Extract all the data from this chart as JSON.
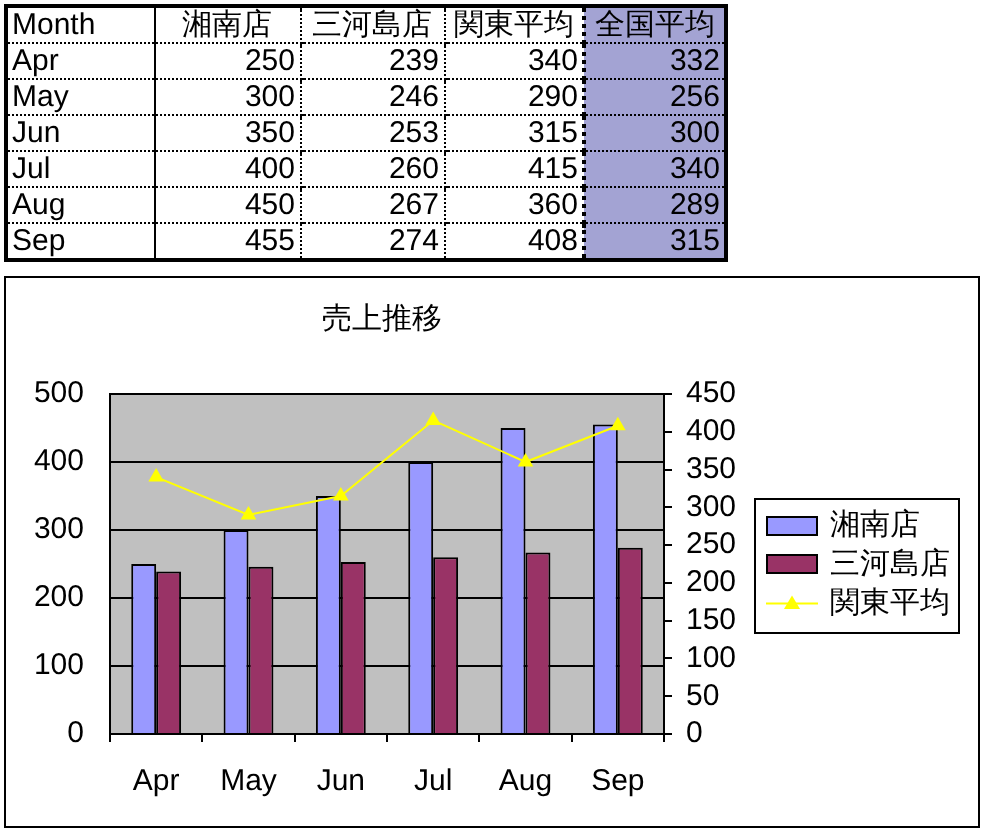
{
  "chart_data": [
    {
      "type": "heatmap",
      "ylabel": "Month",
      "categories": [
        "湘南店",
        "三河島店",
        "関東平均",
        "全国平均"
      ],
      "y_categories": [
        "Apr",
        "May",
        "Jun",
        "Jul",
        "Aug",
        "Sep"
      ],
      "cells": [
        [
          250,
          239,
          340,
          332
        ],
        [
          300,
          246,
          290,
          256
        ],
        [
          350,
          253,
          315,
          300
        ],
        [
          400,
          260,
          415,
          340
        ],
        [
          450,
          267,
          360,
          289
        ],
        [
          455,
          274,
          408,
          315
        ]
      ],
      "data_labels": true,
      "bands": [
        {
          "axis": "x",
          "from": "全国平均",
          "to": "全国平均",
          "color": "#a3a3d3"
        }
      ]
    },
    {
      "type": "bar",
      "title": "売上推移",
      "categories": [
        "Apr",
        "May",
        "Jun",
        "Jul",
        "Aug",
        "Sep"
      ],
      "series": [
        {
          "name": "湘南店",
          "color": "#9999ff",
          "values": [
            250,
            300,
            350,
            400,
            450,
            455
          ]
        },
        {
          "name": "三河島店",
          "color": "#993366",
          "values": [
            239,
            246,
            253,
            260,
            267,
            274
          ]
        },
        {
          "name": "関東平均",
          "type": "line",
          "axis": "y2",
          "color": "#ffff00",
          "marker": "triangle",
          "values": [
            340,
            290,
            315,
            415,
            360,
            408
          ]
        }
      ],
      "ylim": [
        0,
        500
      ],
      "yticks": [
        0,
        100,
        200,
        300,
        400,
        500
      ],
      "y2lim": [
        0,
        450
      ],
      "y2ticks": [
        0,
        50,
        100,
        150,
        200,
        250,
        300,
        350,
        400,
        450
      ],
      "grid": "y",
      "legend": "right"
    }
  ]
}
